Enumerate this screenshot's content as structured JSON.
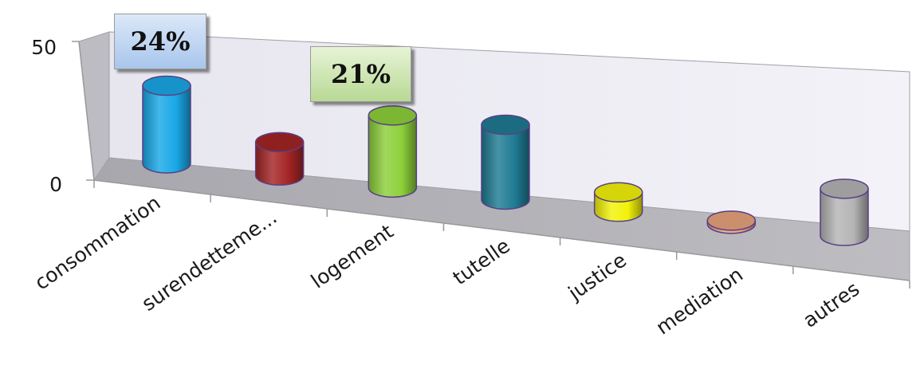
{
  "chart_data": {
    "type": "bar",
    "style": "3d-cylinder",
    "categories": [
      "consommation",
      "surendetteme...",
      "logement",
      "tutelle",
      "justice",
      "mediation",
      "autres"
    ],
    "values": [
      28,
      12,
      26,
      27,
      7,
      1,
      17
    ],
    "colors": [
      "#19a8e6",
      "#a32424",
      "#8cd03a",
      "#1f7b93",
      "#f2f20a",
      "#e8a27c",
      "#b4b4b4"
    ],
    "yticks": [
      "0",
      "50"
    ],
    "ylim": [
      0,
      50
    ],
    "grid": false,
    "annotations": [
      {
        "text": "24%",
        "category": "consommation",
        "color": "blue"
      },
      {
        "text": "21%",
        "category": "logement",
        "color": "green"
      }
    ]
  }
}
